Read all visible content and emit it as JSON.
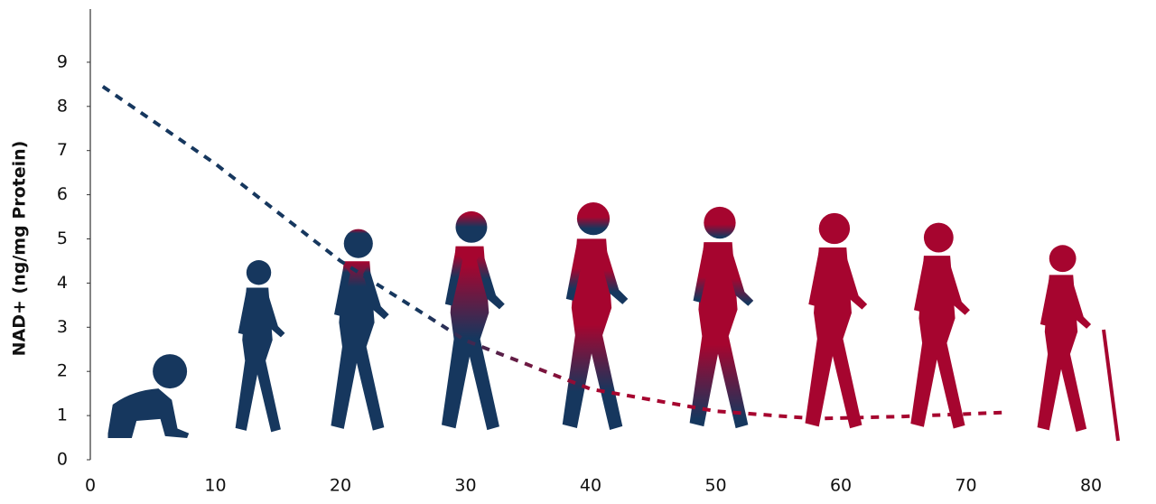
{
  "chart_data": {
    "type": "line",
    "y_label": "NAD+ (ng/mg Protein)",
    "x": [
      1,
      10,
      20,
      30,
      40,
      50,
      58,
      65,
      73
    ],
    "series": [
      {
        "values": [
          8.45,
          6.7,
          4.5,
          2.7,
          1.6,
          1.1,
          0.93,
          0.98,
          1.07
        ],
        "color": "#16375e",
        "color_end": "#a6052f",
        "dashed": true
      }
    ],
    "xlim": [
      0,
      85.7
    ],
    "xticks": [
      0,
      10,
      20,
      30,
      40,
      50,
      60,
      70,
      80
    ],
    "ylim": [
      0,
      10
    ],
    "yticks": [
      0,
      1,
      2,
      3,
      4,
      5,
      6,
      7,
      8,
      9
    ]
  }
}
